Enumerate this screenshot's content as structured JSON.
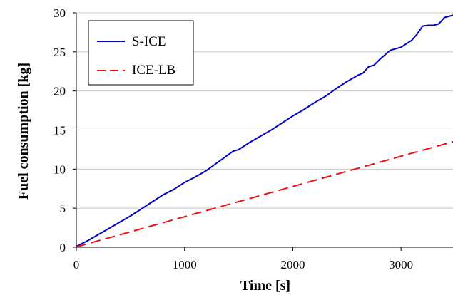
{
  "chart_data": {
    "type": "line",
    "xlabel": "Time [s]",
    "ylabel": "Fuel consumption [kg]",
    "xlim": [
      0,
      3480
    ],
    "ylim": [
      0,
      30
    ],
    "xticks": [
      0,
      1000,
      2000,
      3000
    ],
    "yticks": [
      0,
      5,
      10,
      15,
      20,
      25,
      30
    ],
    "grid": "horizontal",
    "legend_position": "top-left",
    "series": [
      {
        "name": "S-ICE",
        "color": "#0000cc",
        "style": "solid",
        "x": [
          0,
          100,
          200,
          300,
          400,
          500,
          600,
          700,
          800,
          900,
          1000,
          1100,
          1200,
          1300,
          1400,
          1450,
          1500,
          1600,
          1700,
          1800,
          1900,
          2000,
          2100,
          2200,
          2300,
          2400,
          2500,
          2600,
          2650,
          2700,
          2750,
          2800,
          2850,
          2900,
          3000,
          3100,
          3150,
          3200,
          3250,
          3300,
          3350,
          3400,
          3480
        ],
        "y": [
          0.1,
          0.8,
          1.6,
          2.4,
          3.2,
          4.0,
          4.9,
          5.8,
          6.7,
          7.4,
          8.3,
          9.0,
          9.8,
          10.8,
          11.8,
          12.3,
          12.5,
          13.4,
          14.2,
          15.0,
          15.9,
          16.8,
          17.6,
          18.5,
          19.3,
          20.3,
          21.2,
          22.0,
          22.3,
          23.1,
          23.3,
          24.0,
          24.6,
          25.2,
          25.6,
          26.5,
          27.3,
          28.3,
          28.4,
          28.4,
          28.6,
          29.4,
          29.7
        ]
      },
      {
        "name": "ICE-LB",
        "color": "#ee1111",
        "style": "dashed",
        "x": [
          0,
          3480
        ],
        "y": [
          0.05,
          13.5
        ]
      }
    ]
  }
}
